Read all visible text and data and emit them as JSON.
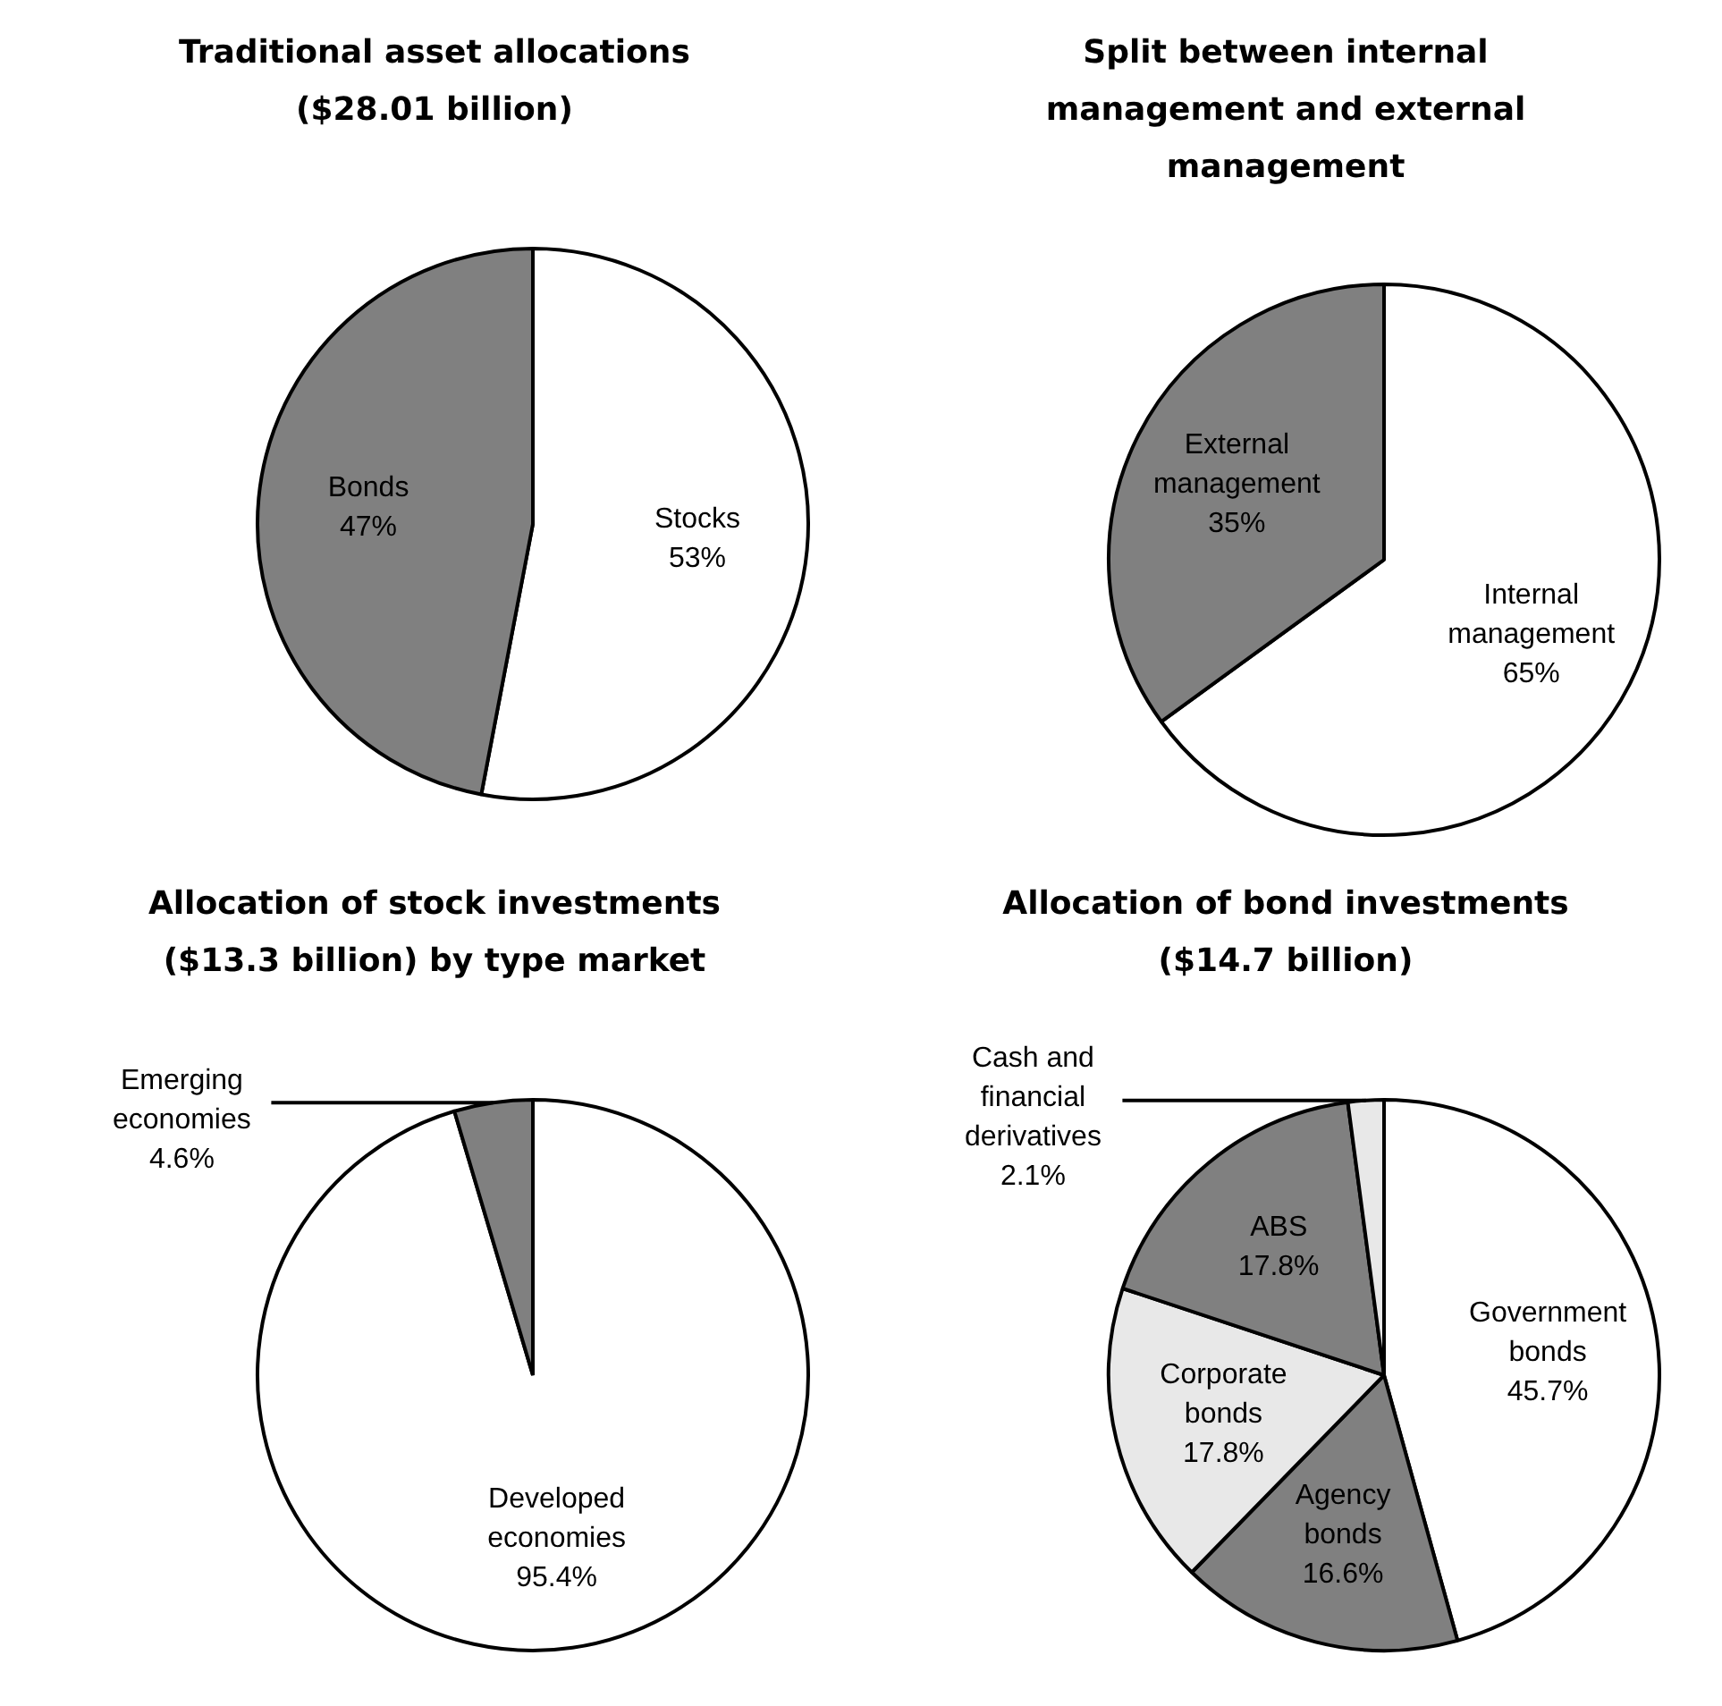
{
  "chart_data": [
    {
      "type": "pie",
      "title": "Traditional asset allocations ($28.01 billion)",
      "categories": [
        "Stocks",
        "Bonds"
      ],
      "values": [
        53,
        47
      ],
      "colors": [
        "#ffffff",
        "#808080"
      ],
      "value_labels": [
        "53%",
        "47%"
      ],
      "legend": false
    },
    {
      "type": "pie",
      "title": "Split between internal management and external management",
      "categories": [
        "Internal management",
        "External management"
      ],
      "values": [
        65,
        35
      ],
      "colors": [
        "#ffffff",
        "#808080"
      ],
      "value_labels": [
        "65%",
        "35%"
      ],
      "legend": false
    },
    {
      "type": "pie",
      "title": "Allocation of stock investments ($13.3 billion) by type market",
      "categories": [
        "Developed economies",
        "Emerging economies"
      ],
      "values": [
        95.4,
        4.6
      ],
      "colors": [
        "#ffffff",
        "#808080"
      ],
      "value_labels": [
        "95.4%",
        "4.6%"
      ],
      "legend": false
    },
    {
      "type": "pie",
      "title": "Allocation of bond investments ($14.7 billion)",
      "categories": [
        "Government bonds",
        "Agency bonds",
        "Corporate bonds",
        "ABS",
        "Cash and financial derivatives"
      ],
      "values": [
        45.7,
        16.6,
        17.8,
        17.8,
        2.1
      ],
      "colors": [
        "#ffffff",
        "#808080",
        "#e8e8e8",
        "#808080",
        "#e8e8e8"
      ],
      "value_labels": [
        "45.7%",
        "16.6%",
        "17.8%",
        "17.8%",
        "2.1%"
      ],
      "legend": false
    }
  ]
}
